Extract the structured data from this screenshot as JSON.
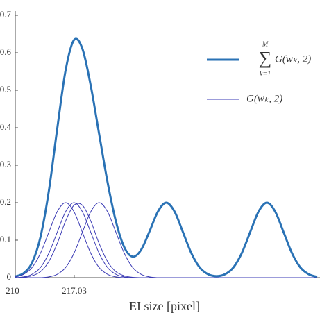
{
  "chart_data": {
    "type": "line",
    "xlabel": "EI size [pixel]",
    "x": [
      210,
      211,
      212,
      213,
      214,
      215,
      216,
      217,
      218,
      219,
      220,
      221,
      222,
      223,
      224,
      225,
      226,
      227,
      228,
      229,
      230,
      231,
      232,
      233,
      234,
      235,
      236,
      237,
      238,
      239,
      240,
      241,
      242,
      243,
      244,
      245,
      246
    ],
    "xlim": [
      210,
      246
    ],
    "xticks": [
      210,
      217.03
    ],
    "ylim": [
      0,
      0.7
    ],
    "yticks": [
      0,
      0.1,
      0.2,
      0.3,
      0.4,
      0.5,
      0.6,
      0.7
    ],
    "grid": false,
    "legend": "upper right",
    "series": [
      {
        "name": "G(wₖ, 2)",
        "sum_symbol": "∑",
        "sum_upper": "M",
        "sum_lower": "k=1",
        "color": "#2a72b5",
        "width": 3,
        "values": [
          0.003,
          0.012,
          0.04,
          0.108,
          0.231,
          0.397,
          0.553,
          0.634,
          0.611,
          0.512,
          0.383,
          0.255,
          0.15,
          0.081,
          0.056,
          0.074,
          0.123,
          0.176,
          0.2,
          0.176,
          0.121,
          0.065,
          0.027,
          0.009,
          0.004,
          0.009,
          0.027,
          0.065,
          0.121,
          0.176,
          0.2,
          0.176,
          0.121,
          0.065,
          0.027,
          0.009,
          0.002
        ]
      },
      {
        "name": "G(wₖ, 2)",
        "color": "#3a3ab4",
        "width": 1,
        "curves": [
          [
            0.002,
            0.009,
            0.027,
            0.065,
            0.121,
            0.176,
            0.2,
            0.176,
            0.121,
            0.065,
            0.027,
            0.009,
            0.002,
            0.0,
            0.0,
            0,
            0,
            0,
            0,
            0,
            0,
            0,
            0,
            0,
            0,
            0,
            0,
            0,
            0,
            0,
            0,
            0,
            0,
            0,
            0,
            0,
            0
          ],
          [
            0.0,
            0.002,
            0.009,
            0.027,
            0.065,
            0.121,
            0.176,
            0.2,
            0.176,
            0.121,
            0.065,
            0.027,
            0.009,
            0.002,
            0.0,
            0.0,
            0,
            0,
            0,
            0,
            0,
            0,
            0,
            0,
            0,
            0,
            0,
            0,
            0,
            0,
            0,
            0,
            0,
            0,
            0,
            0,
            0
          ],
          [
            0.0,
            0.001,
            0.005,
            0.016,
            0.043,
            0.091,
            0.151,
            0.193,
            0.193,
            0.151,
            0.091,
            0.043,
            0.016,
            0.005,
            0.001,
            0.0,
            0,
            0,
            0,
            0,
            0,
            0,
            0,
            0,
            0,
            0,
            0,
            0,
            0,
            0,
            0,
            0,
            0,
            0,
            0,
            0,
            0
          ],
          [
            0,
            0,
            0.0,
            0.0,
            0.002,
            0.009,
            0.027,
            0.065,
            0.121,
            0.176,
            0.2,
            0.176,
            0.121,
            0.065,
            0.027,
            0.009,
            0.002,
            0.0,
            0.0,
            0,
            0,
            0,
            0,
            0,
            0,
            0,
            0,
            0,
            0,
            0,
            0,
            0,
            0,
            0,
            0,
            0,
            0
          ]
        ]
      }
    ]
  }
}
